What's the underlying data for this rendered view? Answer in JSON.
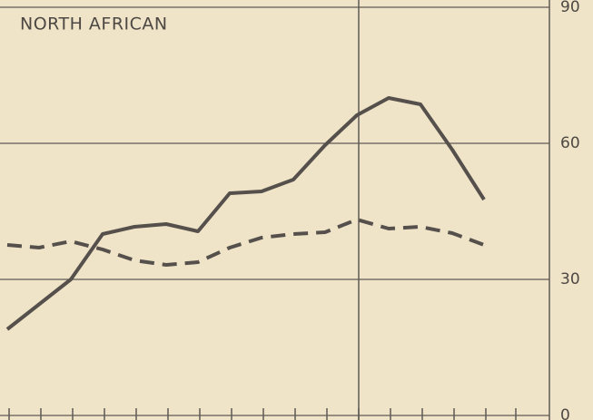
{
  "chart_data": {
    "type": "line",
    "title": "NORTH AFRICAN",
    "categories": [
      null,
      null,
      null,
      null,
      null,
      null,
      null,
      null,
      null,
      null,
      null,
      null,
      null,
      null,
      null,
      null
    ],
    "series": [
      {
        "color": "#55504b",
        "style": "solid",
        "values": [
          19,
          24.5,
          30,
          40,
          41.6,
          42.2,
          40.6,
          49,
          49.4,
          52,
          59.6,
          66.2,
          70,
          68.6,
          58.6,
          47.6
        ]
      },
      {
        "color": "#55504b",
        "style": "dashed",
        "values": [
          37.6,
          37,
          38.4,
          36.6,
          34.2,
          33.2,
          33.8,
          37,
          39.2,
          40,
          40.4,
          43.2,
          41.2,
          41.6,
          40.2,
          37.6
        ]
      }
    ],
    "ylim": [
      0,
      90
    ],
    "yticks": [
      0,
      30,
      60,
      90
    ],
    "grid": true,
    "y_axis_side": "right"
  }
}
